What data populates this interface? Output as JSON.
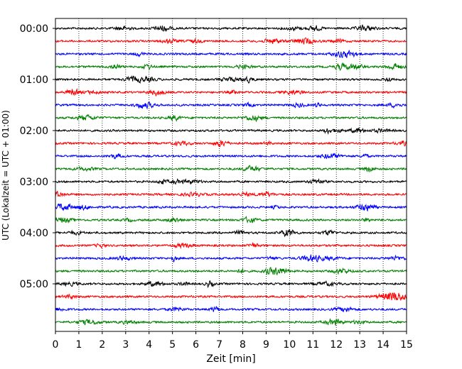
{
  "chart_data": {
    "type": "line",
    "xlabel": "Zeit  [min]",
    "ylabel": "UTC (Lokalzeit = UTC + 01:00)",
    "xlim": [
      0,
      15
    ],
    "x_ticks": [
      "0",
      "1",
      "2",
      "3",
      "4",
      "5",
      "6",
      "7",
      "8",
      "9",
      "10",
      "11",
      "12",
      "13",
      "14",
      "15"
    ],
    "y_tick_labels": [
      "00:00",
      "01:00",
      "02:00",
      "03:00",
      "04:00",
      "05:00"
    ],
    "row_interval_min": 15,
    "row_start_times": [
      "00:00",
      "00:15",
      "00:30",
      "00:45",
      "01:00",
      "01:15",
      "01:30",
      "01:45",
      "02:00",
      "02:15",
      "02:30",
      "02:45",
      "03:00",
      "03:15",
      "03:30",
      "03:45",
      "04:00",
      "04:15",
      "04:30",
      "04:45",
      "05:00",
      "05:15",
      "05:30",
      "05:45"
    ],
    "row_colors": [
      "#000000",
      "#ff0000",
      "#0000ff",
      "#008000"
    ],
    "grid": "vertical dotted at each minute",
    "legend": "none"
  }
}
